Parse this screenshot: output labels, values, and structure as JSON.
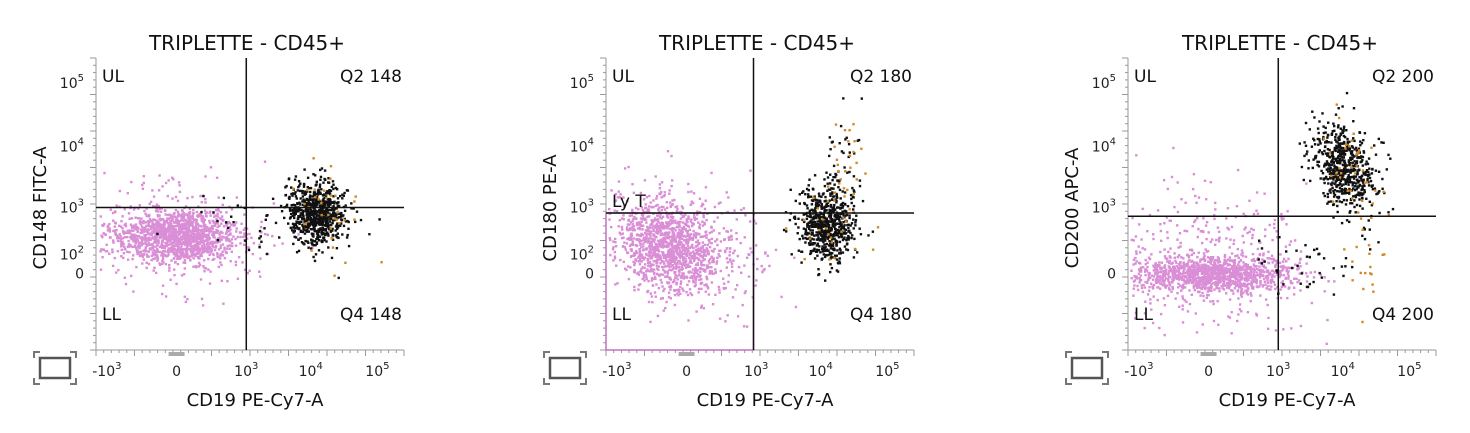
{
  "chart_data": [
    {
      "type": "scatter",
      "title": "TRIPLETTE - CD45+",
      "xlabel": "CD19 PE-Cy7-A",
      "ylabel": "CD148 FITC-A",
      "x_ticks": [
        "-10^3",
        "0",
        "10^3",
        "10^4",
        "10^5"
      ],
      "y_ticks": [
        "0",
        "10^2",
        "10^3",
        "10^4",
        "10^5"
      ],
      "x_scale": "biexponential",
      "y_scale": "biexponential",
      "quadrant_gate": {
        "x": 1000,
        "y": 1000
      },
      "quadrant_labels": {
        "ul": "UL",
        "ur": "Q2 148",
        "ll": "LL",
        "lr": "Q4 148"
      },
      "populations": [
        {
          "color": "#d98ed6",
          "center": {
            "x": 0,
            "y": 300
          },
          "description": "large pink cluster"
        },
        {
          "color": "#111111",
          "center": {
            "x": 12000,
            "y": 800
          }
        },
        {
          "color": "#d08a2a",
          "center": {
            "x": 14000,
            "y": 800
          }
        }
      ]
    },
    {
      "type": "scatter",
      "title": "TRIPLETTE - CD45+",
      "xlabel": "CD19 PE-Cy7-A",
      "ylabel": "CD180 PE-A",
      "x_ticks": [
        "-10^3",
        "0",
        "10^3",
        "10^4",
        "10^5"
      ],
      "y_ticks": [
        "0",
        "10^2",
        "10^3",
        "10^4",
        "10^5"
      ],
      "x_scale": "biexponential",
      "y_scale": "biexponential",
      "quadrant_gate": {
        "x": 900,
        "y": 800
      },
      "quadrant_labels": {
        "ul": "UL",
        "ur": "Q2 180",
        "ll": "LL",
        "lr": "Q4 180",
        "gate": "Ly T"
      },
      "populations": [
        {
          "color": "#d98ed6",
          "center": {
            "x": 0,
            "y": 200
          }
        },
        {
          "color": "#111111",
          "center": {
            "x": 12000,
            "y": 500
          }
        },
        {
          "color": "#d08a2a",
          "center": {
            "x": 15000,
            "y": 500
          }
        }
      ]
    },
    {
      "type": "scatter",
      "title": "TRIPLETTE - CD45+",
      "xlabel": "CD19 PE-Cy7-A",
      "ylabel": "CD200 APC-A",
      "x_ticks": [
        "-10^3",
        "0",
        "10^3",
        "10^4",
        "10^5"
      ],
      "y_ticks": [
        "0",
        "10^3",
        "10^4",
        "10^5"
      ],
      "x_scale": "biexponential",
      "y_scale": "biexponential",
      "quadrant_gate": {
        "x": 1000,
        "y": 700
      },
      "quadrant_labels": {
        "ul": "UL",
        "ur": "Q2 200",
        "ll": "LL",
        "lr": "Q4 200"
      },
      "populations": [
        {
          "color": "#d98ed6",
          "center": {
            "x": 0,
            "y": 0
          }
        },
        {
          "color": "#111111",
          "center": {
            "x": 10000,
            "y": 5000
          }
        },
        {
          "color": "#d08a2a",
          "center": {
            "x": 12000,
            "y": 5000
          }
        }
      ]
    }
  ]
}
